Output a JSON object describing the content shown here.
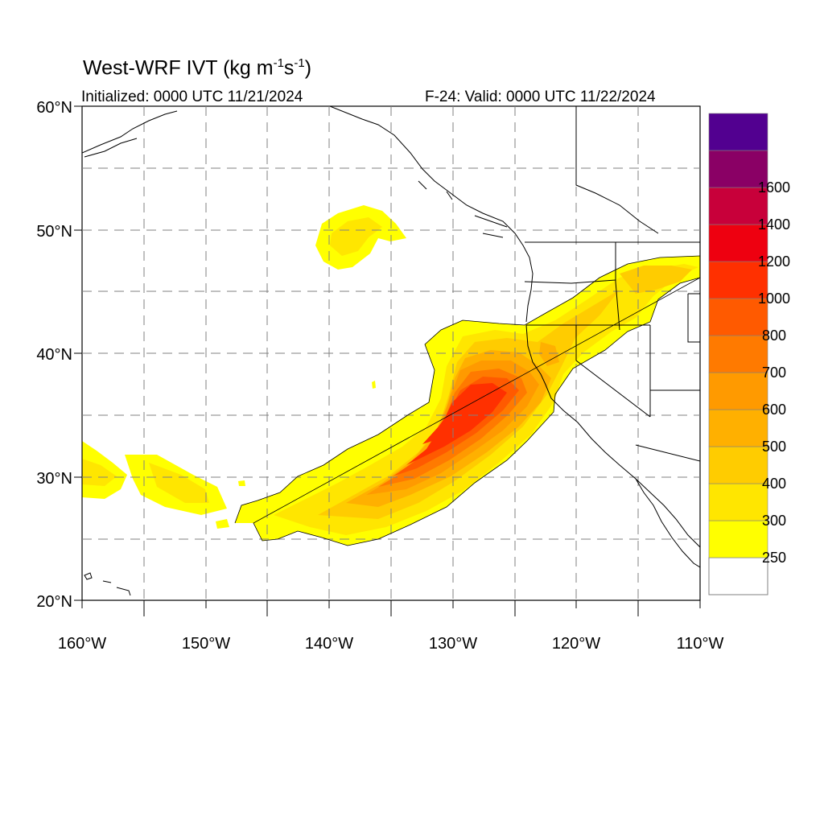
{
  "title": {
    "main": "West-WRF IVT (kg m",
    "sup1": "-1",
    "mid": "s",
    "sup2": "-1",
    "end": ")"
  },
  "subtitle_left": "Initialized: 0000 UTC 11/21/2024",
  "subtitle_right": "F-24: Valid: 0000 UTC 11/22/2024",
  "lat_labels": [
    "60°N",
    "50°N",
    "40°N",
    "30°N",
    "20°N"
  ],
  "lon_labels": [
    "160°W",
    "150°W",
    "140°W",
    "130°W",
    "120°W",
    "110°W"
  ],
  "map_extent": {
    "lon": [
      -160,
      -110
    ],
    "lat": [
      20,
      60
    ]
  },
  "colorbar": {
    "levels": [
      "250",
      "300",
      "400",
      "500",
      "600",
      "700",
      "800",
      "1000",
      "1200",
      "1400",
      "1600"
    ],
    "colors": [
      "#ffff00",
      "#ffe600",
      "#ffcc00",
      "#ffb000",
      "#ff9a00",
      "#ff7a00",
      "#ff5a00",
      "#ff3000",
      "#ee0010",
      "#c8003a",
      "#8a0065",
      "#520090"
    ]
  },
  "field_colors": {
    "c1": "#ffff00",
    "c2": "#ffe600",
    "c3": "#ffcc00",
    "c4": "#ffb000",
    "c5": "#ff9a00",
    "c6": "#ff7a00",
    "c7": "#ff5a00",
    "c8": "#ff3000"
  }
}
